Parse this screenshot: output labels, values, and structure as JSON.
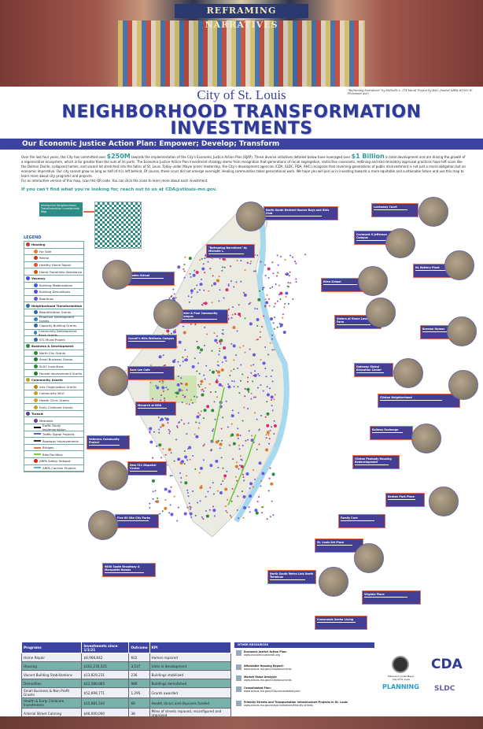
{
  "banner": {
    "mural_title": "REFRAMING NARRATIVES",
    "credit": "\"Reframing Narratives\" by Michelle L. (TX Mural Project by KAC, funded ARPA #1000 W. Florissant Ave)"
  },
  "header": {
    "city": "City of St. Louis",
    "title_line1": "NEIGHBORHOOD TRANSFORMATION",
    "title_line2": "INVESTMENTS",
    "subtitle": "Our Economic Justice Action Plan: Empower; Develop; Transform"
  },
  "intro": {
    "p1a": "Over the last four years, the City has committed over ",
    "amount1": "$250M",
    "p1b": " towards the implementation of the City's Economic Justice Action Plan (EJAP). These diverse initiatives detailed below have leveraged over ",
    "amount2": "$1 Billion",
    "p1c": " in total development and are driving the growth of a regenerative ecosystem, which is far greater than the sum of its parts. The Economic Justice Action Plan investment strategy stems from recognition that generations of racial segregation, restrictive covenants, redlining and discriminatory appraisal practices have left scars like the Delmar Divide, collapsed homes, and vacant lot stretched into the fabric of St. Louis. Today under Mayor Jones' leadership, the City's development agencies (CDA, SLDC, PDA, AHC) recognize that reversing generations of public disinvestment is not just a moral obligation but an economic imperative. Our city cannot grow so long as half of it is left behind. Of course, these scars did not emerge overnight. Healing communities takes generational work. We hope you will join us in investing towards a more equitable and sustainable future and use this map to learn more about city programs and projects.",
    "p2": "For an interactive version of this map, scan the QR code. You can click the icons to learn more about each investment.",
    "contact": "If you can't find what you're looking for, reach out to us at CDA@stlouis-mo.gov."
  },
  "qr": {
    "label": "Interactive Neighborhood Transformation Investments Map"
  },
  "legend": {
    "heading": "LEGEND",
    "items": [
      {
        "label": "Housing",
        "cat": true,
        "color": "#c0392b"
      },
      {
        "label": "For Sale",
        "color": "#e67e22"
      },
      {
        "label": "Rental",
        "color": "#c0392b"
      },
      {
        "label": "Healthy Home Repair",
        "color": "#e74c3c"
      },
      {
        "label": "Home Ownership Assistance",
        "color": "#d35400"
      },
      {
        "label": "Vacancy",
        "cat": true,
        "color": "#4a4ae0"
      },
      {
        "label": "Building Stabilizations",
        "color": "#3b5bdb"
      },
      {
        "label": "Building Demolitions",
        "color": "#5a4ae0"
      },
      {
        "label": "Boardups",
        "color": "#6a5acd"
      },
      {
        "label": "Neighborhood Transformation",
        "cat": true,
        "color": "#2e6aa8"
      },
      {
        "label": "Beautification Grants",
        "color": "#2e6aa8"
      },
      {
        "label": "Proactive Development Grants",
        "color": "#2e86c1"
      },
      {
        "label": "Capacity Building Grants",
        "color": "#2e6aa8"
      },
      {
        "label": "Community Development Block Grants",
        "color": "#2e86c1"
      },
      {
        "label": "STL Mural Project",
        "color": "#2e6aa8"
      },
      {
        "label": "Business & Development",
        "cat": true,
        "color": "#2e8b3a"
      },
      {
        "label": "North City Grants",
        "color": "#2e8b3a"
      },
      {
        "label": "Small Business Grants",
        "color": "#1e7a30"
      },
      {
        "label": "SLDC Incentives",
        "color": "#2e8b3a"
      },
      {
        "label": "Facade Improvement Grants",
        "color": "#1e7a30"
      },
      {
        "label": "Community Assets",
        "cat": true,
        "color": "#c8a020"
      },
      {
        "label": "Arts Organization Grants",
        "color": "#b8860b"
      },
      {
        "label": "Community Wi-fi",
        "color": "#c8a020"
      },
      {
        "label": "Health Clinic Grants",
        "color": "#d4a020"
      },
      {
        "label": "Early Childcare Grants",
        "color": "#c8a020"
      },
      {
        "label": "Transit",
        "cat": true,
        "color": "#6a3aa0"
      },
      {
        "label": "Metrolink",
        "color": "#6a3aa0"
      },
      {
        "label": "Traffic Study Implementation",
        "line": "#000"
      },
      {
        "label": "Traffic Signal Projects",
        "line": "#4a6ae0"
      },
      {
        "label": "Roadway Improvements",
        "line": "#333"
      },
      {
        "label": "Bridges",
        "line": "#e07a4a"
      },
      {
        "label": "Bike Facilities",
        "line": "#7cc83a"
      },
      {
        "label": "ARPA Safety Hotspot",
        "color": "#e02020"
      },
      {
        "label": "ARPA Corridor Projects",
        "line": "#5ab0e0"
      }
    ]
  },
  "callouts": [
    "North Sarah Herbert Hoover Boys and Girls Club",
    "Lookaway Court",
    "Covenant II Jefferson Campus",
    "\"Reframing Narratives\" by Michelle L.",
    "Baden School",
    "NL Battery Plant",
    "Ellen School",
    "Peter & Paul Community Campus",
    "Sisters of Grace Lavender Farm",
    "Carroll's Hills Wellness Campus",
    "Bremen Homes",
    "Sara Lee Cafe",
    "Gateway Global Education Center",
    "Monarch at NGA",
    "Clinton Neighborhood",
    "Veterans Community Project",
    "Railway Exchange",
    "New 911 Dispatch Center",
    "Clinton Peabody Housing Redevelopment",
    "Benton Park Place",
    "Five 80 Site City Parks",
    "Family Care",
    "St. Louis Art Place",
    "9800 South Broadway & Marquette Homes",
    "North South Metro Link North Terminus",
    "Virginia Place",
    "Crossroads Senior Living"
  ],
  "table": {
    "headers": [
      "Programs",
      "Investments since 1/1/21",
      "Outcome",
      "KPI"
    ],
    "rows": [
      [
        "Home Repair",
        "$8,968,842",
        "602",
        "Homes repaired"
      ],
      [
        "Housing",
        "$102,235,525",
        "3,537",
        "Units in development"
      ],
      [
        "Vacant Building Stabilizations",
        "$13,829,231",
        "236",
        "Buildings stabilized"
      ],
      [
        "Demolition",
        "$12,580,865",
        "980",
        "Buildings demolished"
      ],
      [
        "Small Business & Non-Profit Grants",
        "$52,698,771",
        "1,295",
        "Grants awarded"
      ],
      [
        "Health & Early Childcare Investments",
        "$15,681,544",
        "66",
        "Health clinics and daycares funded"
      ],
      [
        "Arterial Street Calming",
        "$46,000,000",
        "38",
        "Miles of streets repaved, reconfigured and improved"
      ]
    ]
  },
  "resources": {
    "heading": "OTHER RESOURCES",
    "items": [
      {
        "title": "Economic Justice Action Plan:",
        "url": "www.economicjusticestl.org"
      },
      {
        "title": "Affordable Housing Report:",
        "url": "www.stlouis-mo.gov/CDA/documents"
      },
      {
        "title": "Market Value Analysis:",
        "url": "www.stlouis-mo.gov/CDA/documents"
      },
      {
        "title": "Consolidated Plan:",
        "url": "www.stlouis-mo.gov/CDA/consolidated-plan"
      },
      {
        "title": "Friendly Streets and Transportation Infrastructure Projects in St. Louis",
        "url": "www.stlouis-mo.gov/mayor/initiatives/friendly-streets"
      }
    ]
  },
  "logos": {
    "mayor": "Tishaura O. Jones Mayor, City of St. Louis",
    "cda": "CDA",
    "planning": "PLANNING",
    "sldc": "SLDC"
  }
}
